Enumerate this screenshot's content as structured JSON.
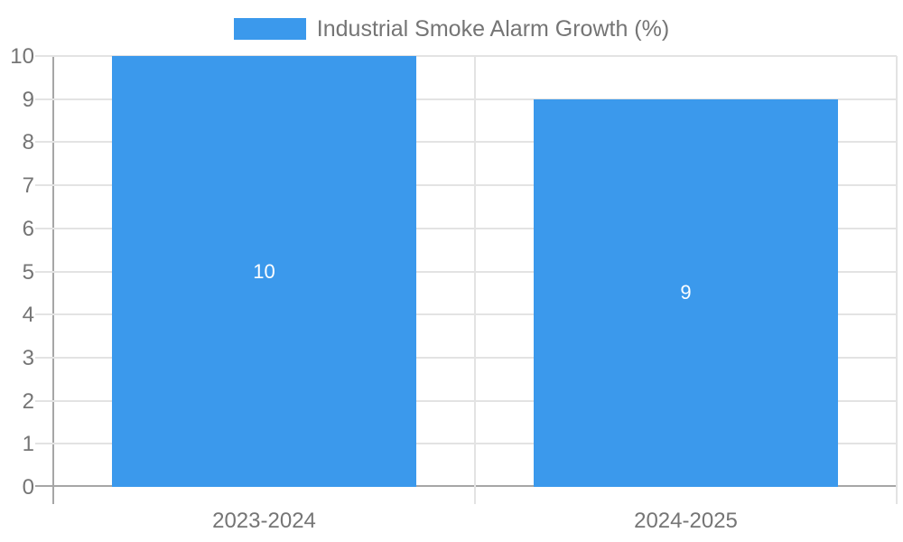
{
  "chart_data": {
    "type": "bar",
    "title": "Industrial Smoke Alarm Growth (%)",
    "categories": [
      "2023-2024",
      "2024-2025"
    ],
    "series": [
      {
        "name": "Industrial Smoke Alarm Growth (%)",
        "values": [
          10,
          9
        ],
        "color": "#3b99ec"
      }
    ],
    "data_labels": [
      "10",
      "9"
    ],
    "xlabel": "",
    "ylabel": "",
    "ylim": [
      0,
      10
    ],
    "y_tick_step": 1,
    "grid": true,
    "legend_position": "top-center"
  },
  "legend": {
    "label": "Industrial Smoke Alarm Growth (%)",
    "swatch_color": "#3b99ec"
  },
  "axes": {
    "y_ticks": [
      "0",
      "1",
      "2",
      "3",
      "4",
      "5",
      "6",
      "7",
      "8",
      "9",
      "10"
    ],
    "x_ticks": [
      "2023-2024",
      "2024-2025"
    ]
  },
  "colors": {
    "bar": "#3b99ec",
    "grid": "#e3e3e3",
    "axis": "#a6a6a6",
    "text": "#757575",
    "data_label": "#ffffff",
    "background": "#ffffff"
  }
}
